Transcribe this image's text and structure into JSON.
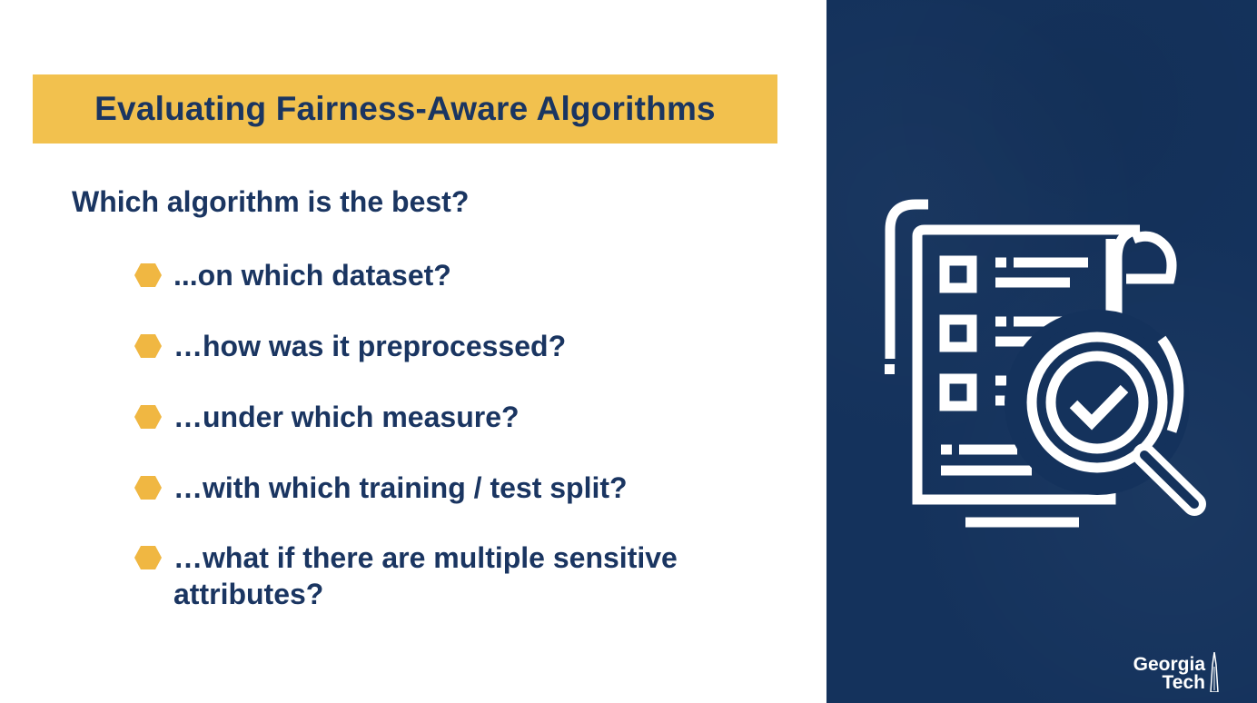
{
  "slide": {
    "title": "Evaluating Fairness-Aware Algorithms",
    "question": "Which algorithm is the best?",
    "bullets": [
      "...on which dataset?",
      "…how was it preprocessed?",
      "…under which measure?",
      "…with which training / test split?",
      "…what if there are multiple sensitive attributes?"
    ]
  },
  "panel": {
    "icon": "checklist-magnifier-icon",
    "logo_line1": "Georgia",
    "logo_line2": "Tech"
  },
  "colors": {
    "banner": "#f2c14e",
    "text": "#1a3561",
    "panel": "#14325c",
    "bullet": "#f0b742"
  }
}
